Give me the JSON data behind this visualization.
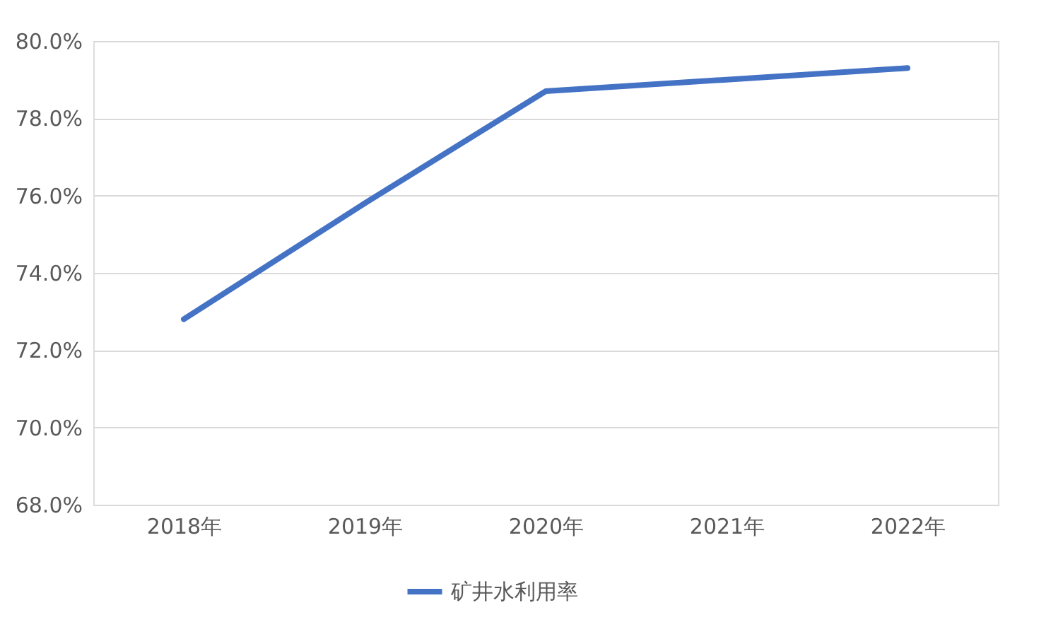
{
  "chart_data": {
    "type": "line",
    "categories": [
      "2018年",
      "2019年",
      "2020年",
      "2021年",
      "2022年"
    ],
    "series": [
      {
        "name": "矿井水利用率",
        "color": "#4472c4",
        "values": [
          72.8,
          75.8,
          78.7,
          79.0,
          79.3
        ]
      }
    ],
    "ylim": [
      68,
      80
    ],
    "yticks": [
      {
        "value": 68,
        "label": "68.0%"
      },
      {
        "value": 70,
        "label": "70.0%"
      },
      {
        "value": 72,
        "label": "72.0%"
      },
      {
        "value": 74,
        "label": "74.0%"
      },
      {
        "value": 76,
        "label": "76.0%"
      },
      {
        "value": 78,
        "label": "78.0%"
      },
      {
        "value": 80,
        "label": "80.0%"
      }
    ],
    "grid": "y",
    "legend": "bottom",
    "marker": "none",
    "line_style": "solid"
  }
}
